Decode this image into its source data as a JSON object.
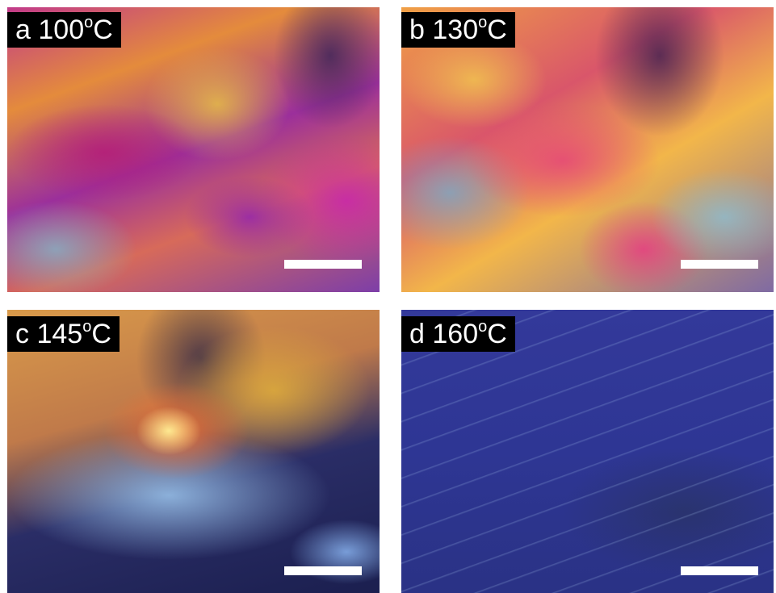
{
  "panels": [
    {
      "letter": "a",
      "temperature": "100",
      "degree": "o",
      "unit": "C"
    },
    {
      "letter": "b",
      "temperature": "130",
      "degree": "o",
      "unit": "C"
    },
    {
      "letter": "c",
      "temperature": "145",
      "degree": "o",
      "unit": "C"
    },
    {
      "letter": "d",
      "temperature": "160",
      "degree": "o",
      "unit": "C"
    }
  ]
}
